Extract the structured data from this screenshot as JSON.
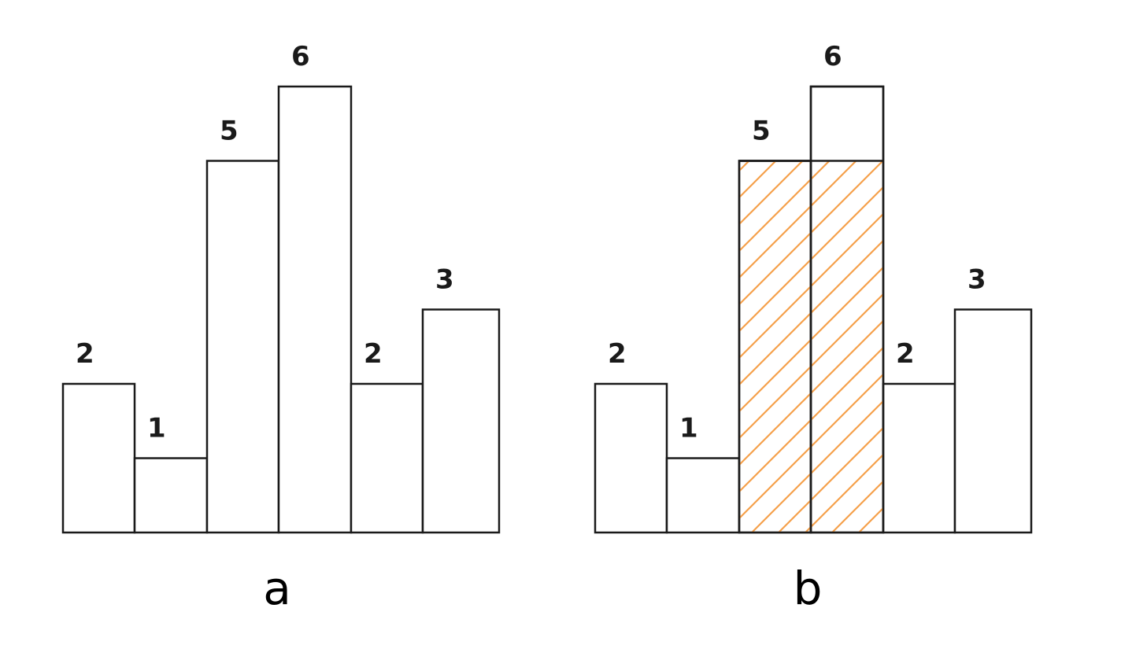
{
  "chart_data": [
    {
      "type": "bar",
      "caption": "a",
      "values": [
        2,
        1,
        5,
        6,
        2,
        3
      ],
      "value_labels": [
        "2",
        "1",
        "5",
        "6",
        "2",
        "3"
      ],
      "highlight": null
    },
    {
      "type": "bar",
      "caption": "b",
      "values": [
        2,
        1,
        5,
        6,
        2,
        3
      ],
      "value_labels": [
        "2",
        "1",
        "5",
        "6",
        "2",
        "3"
      ],
      "highlight": {
        "start_index": 2,
        "end_index": 3,
        "height": 5,
        "pattern": "diagonal-hatch",
        "color": "#f5a04a"
      }
    }
  ],
  "colors": {
    "bar_fill": "#ffffff",
    "bar_stroke": "#1a1a1a",
    "hatch": "#f5a04a"
  }
}
